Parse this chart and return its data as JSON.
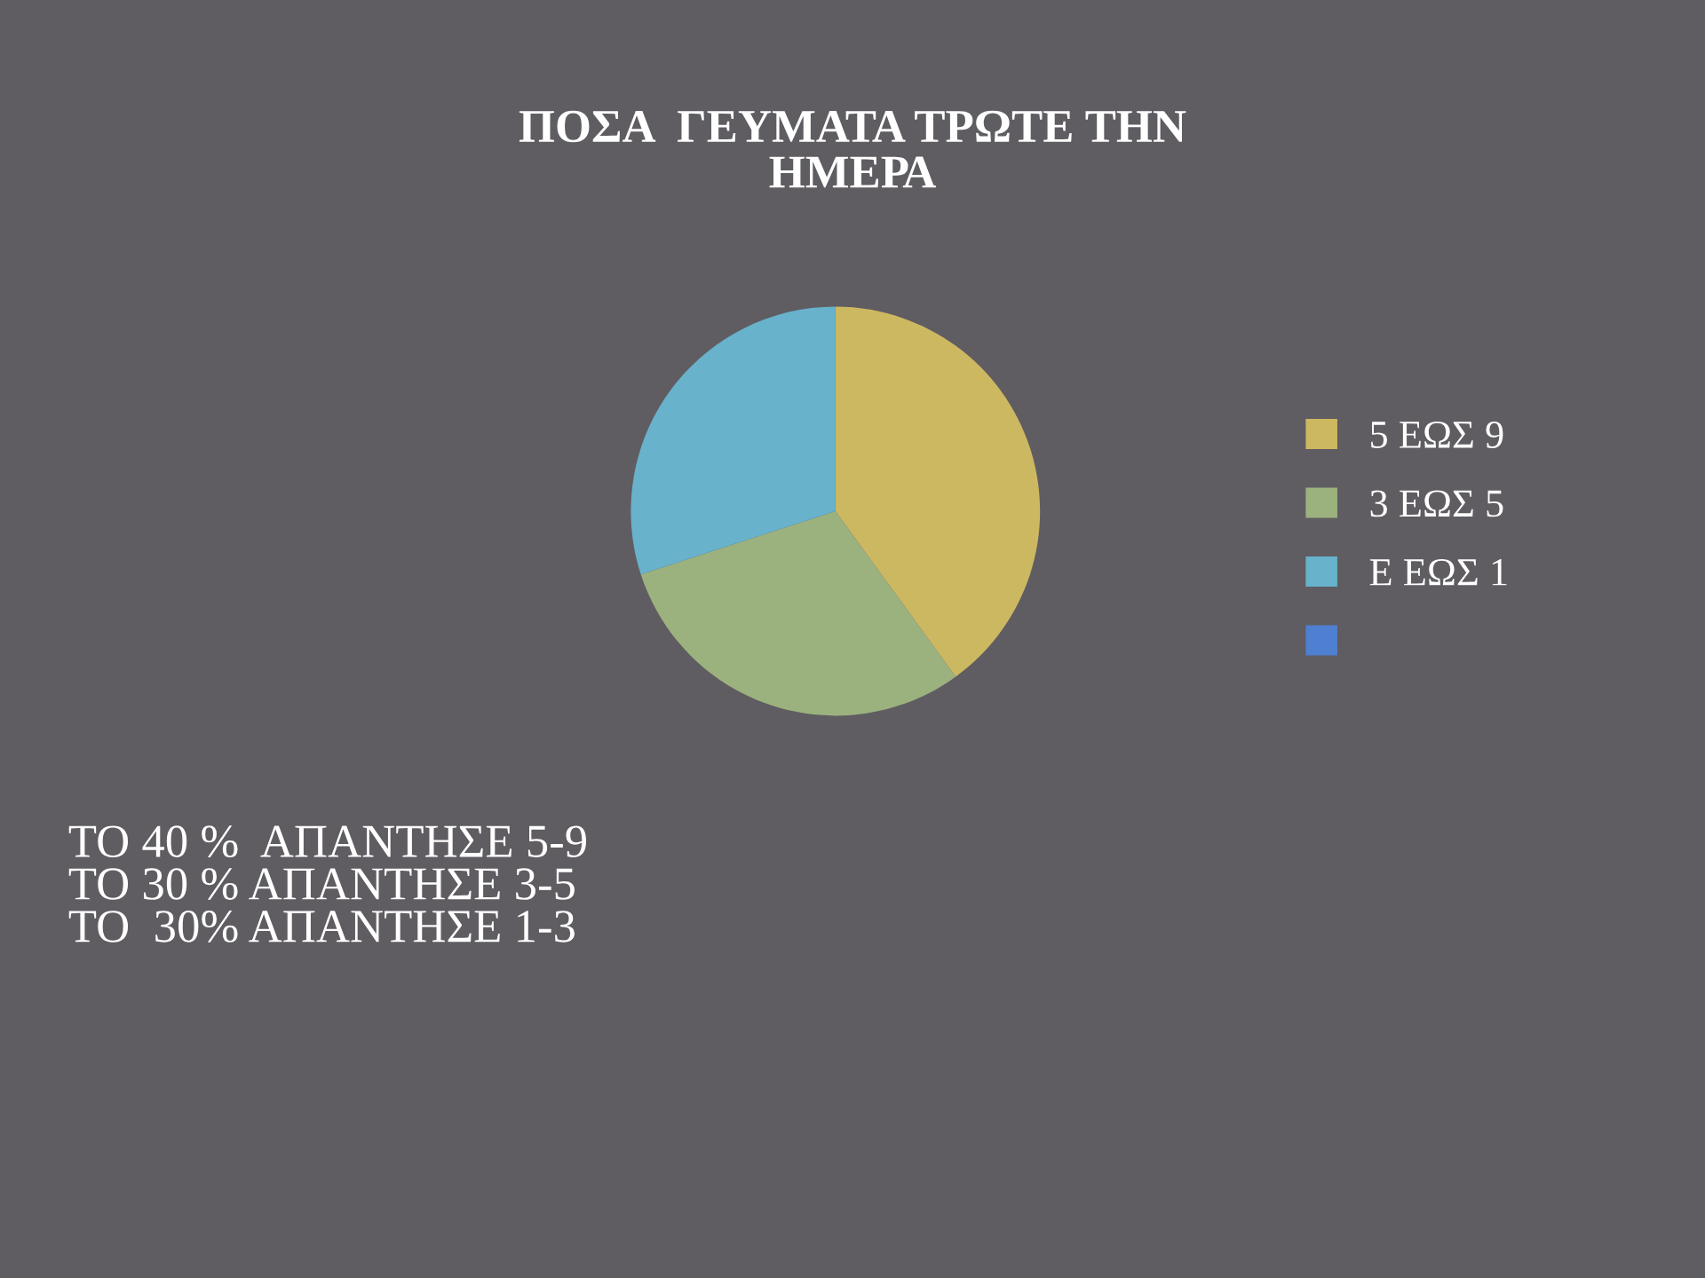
{
  "chart_data": {
    "type": "pie",
    "title": "ΠΟΣΑ  ΓΕΥΜΑΤΑ ΤΡΩΤΕ ΤΗΝ\nΗΜΕΡΑ",
    "categories": [
      "5 ΕΩΣ 9",
      "3 ΕΩΣ 5",
      "Ε ΕΩΣ 1",
      null
    ],
    "values": [
      40,
      30,
      30,
      0
    ],
    "colors": [
      "#cdb862",
      "#9cb27e",
      "#68b2cb",
      "#4f7fd0"
    ],
    "legend": "right",
    "annotations": [
      "ΤΟ 40 %  ΑΠΑΝΤΗΣΕ 5-9\nΤΟ 30 % ΑΠΑΝΤΗΣΕ 3-5\nΤΟ  30% ΑΠΑΝΤΗΣΕ 1-3"
    ]
  }
}
